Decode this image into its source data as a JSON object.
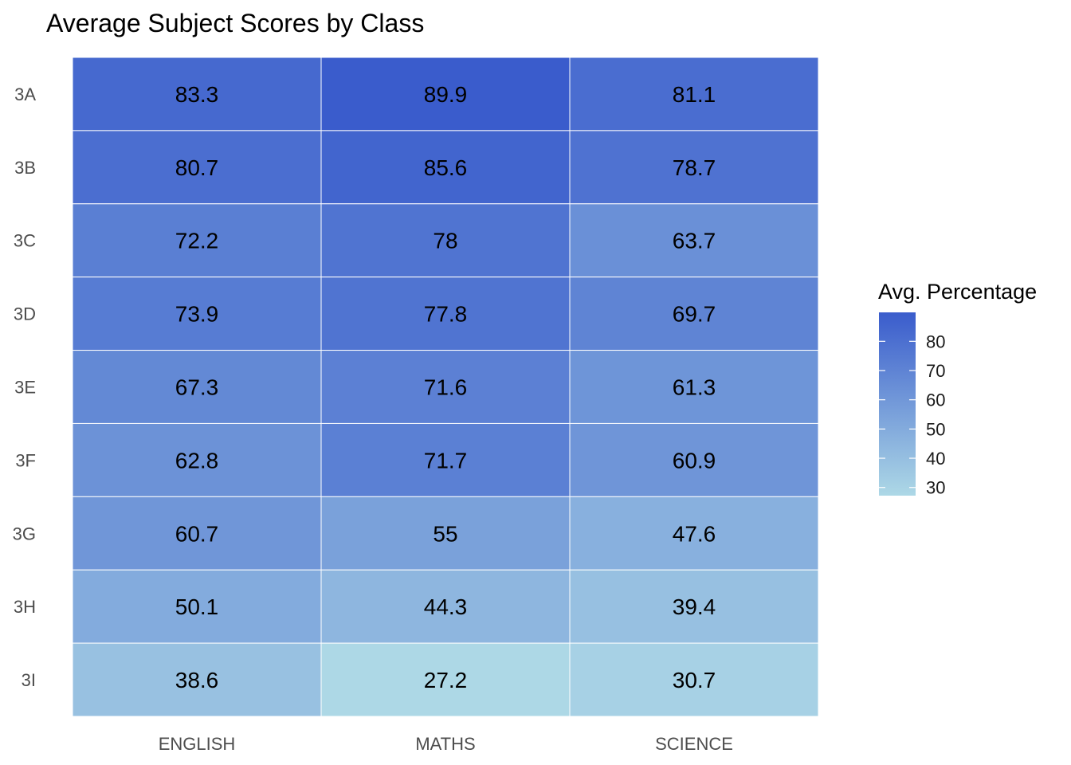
{
  "chart_data": {
    "type": "heatmap",
    "title": "Average Subject Scores by Class",
    "xlabel": "",
    "ylabel": "",
    "x_categories": [
      "ENGLISH",
      "MATHS",
      "SCIENCE"
    ],
    "y_categories": [
      "3A",
      "3B",
      "3C",
      "3D",
      "3E",
      "3F",
      "3G",
      "3H",
      "3I"
    ],
    "values": [
      [
        83.3,
        89.9,
        81.1
      ],
      [
        80.7,
        85.6,
        78.7
      ],
      [
        72.2,
        78,
        63.7
      ],
      [
        73.9,
        77.8,
        69.7
      ],
      [
        67.3,
        71.6,
        61.3
      ],
      [
        62.8,
        71.7,
        60.9
      ],
      [
        60.7,
        55,
        47.6
      ],
      [
        50.1,
        44.3,
        39.4
      ],
      [
        38.6,
        27.2,
        30.7
      ]
    ],
    "legend": {
      "title": "Avg. Percentage",
      "position": "right",
      "ticks": [
        30,
        40,
        50,
        60,
        70,
        80
      ],
      "range": [
        27.2,
        89.9
      ],
      "low_color": "#add8e6",
      "high_color": "#3a5ccc"
    },
    "grid": false
  }
}
